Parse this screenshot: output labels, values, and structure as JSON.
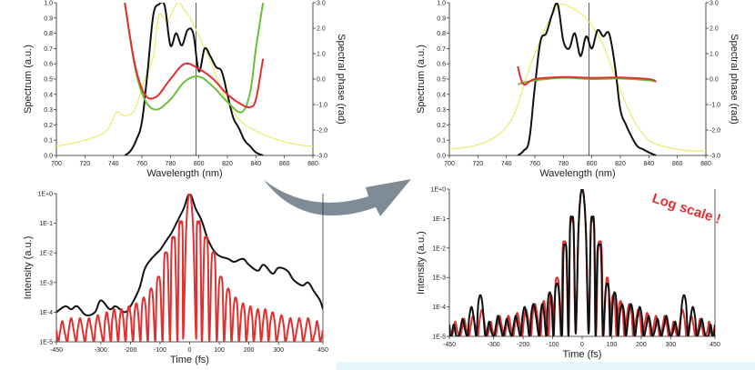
{
  "annotation": {
    "text": "Log scale !",
    "color": "#e32f2f"
  },
  "colors": {
    "black": "#111111",
    "red": "#e03030",
    "green": "#6bbf3a",
    "yellow": "#eeea6a",
    "arrow": "#7f8c96",
    "band": "#e7f6fb"
  },
  "chart_data": [
    {
      "id": "tl",
      "type": "line",
      "xlabel": "Wavelength (nm)",
      "ylabel": "Spectrum (a.u.)",
      "y2label": "Spectral phase (rad)",
      "xlim": [
        700,
        880
      ],
      "ylim": [
        0,
        1.0
      ],
      "y2lim": [
        -3.0,
        3.0
      ],
      "xticks": [
        "700",
        "720",
        "740",
        "760",
        "780",
        "800",
        "820",
        "840",
        "860",
        "880"
      ],
      "yticks": [
        "0.0",
        "0.1",
        "0.2",
        "0.3",
        "0.4",
        "0.5",
        "0.6",
        "0.7",
        "0.8",
        "0.9",
        "1.0"
      ],
      "y2ticks": [
        "-3.0",
        "-2.0",
        "-1.0",
        "0.0",
        "1.0",
        "2.0",
        "3.0"
      ],
      "vline": 798,
      "series": [
        {
          "color": "yellow",
          "axis": "y",
          "x": [
            700,
            720,
            735,
            742,
            748,
            755,
            762,
            768,
            772,
            778,
            785,
            790,
            795,
            800,
            808,
            815,
            822,
            830,
            840,
            850,
            860,
            870,
            880
          ],
          "y": [
            0.06,
            0.1,
            0.16,
            0.28,
            0.26,
            0.3,
            0.5,
            0.65,
            0.92,
            0.88,
            1.0,
            0.95,
            0.88,
            0.78,
            0.62,
            0.45,
            0.32,
            0.22,
            0.16,
            0.12,
            0.09,
            0.07,
            0.06
          ]
        },
        {
          "color": "black",
          "axis": "y",
          "x": [
            748,
            752,
            756,
            760,
            764,
            768,
            772,
            776,
            780,
            784,
            788,
            792,
            796,
            800,
            804,
            808,
            812,
            816,
            820,
            824,
            828,
            832,
            836,
            840,
            845
          ],
          "y": [
            0.0,
            0.03,
            0.1,
            0.22,
            0.55,
            0.92,
            0.99,
            0.98,
            0.72,
            0.8,
            0.72,
            0.82,
            0.8,
            0.55,
            0.7,
            0.65,
            0.58,
            0.55,
            0.4,
            0.25,
            0.18,
            0.1,
            0.06,
            0.02,
            0.0
          ]
        },
        {
          "color": "green",
          "axis": "y2",
          "x": [
            748,
            755,
            762,
            770,
            780,
            790,
            800,
            810,
            820,
            830,
            836,
            840,
            845
          ],
          "y": [
            3.0,
            0.5,
            -0.8,
            -1.2,
            -0.8,
            -0.1,
            0.1,
            -0.3,
            -0.9,
            -1.3,
            -0.5,
            1.2,
            3.0
          ]
        },
        {
          "color": "red",
          "axis": "y2",
          "x": [
            748,
            755,
            762,
            770,
            780,
            790,
            800,
            810,
            820,
            830,
            836,
            840,
            845
          ],
          "y": [
            3.0,
            0.6,
            -0.6,
            -0.7,
            0.0,
            0.6,
            0.4,
            0.0,
            -0.6,
            -1.0,
            -1.1,
            -0.8,
            0.8
          ]
        }
      ]
    },
    {
      "id": "tr",
      "type": "line",
      "xlabel": "Wavelength (nm)",
      "ylabel": "Spectrum (a.u.)",
      "y2label": "Spectral phase (rad)",
      "xlim": [
        700,
        880
      ],
      "ylim": [
        0,
        1.0
      ],
      "y2lim": [
        -3.0,
        3.0
      ],
      "xticks": [
        "700",
        "720",
        "740",
        "760",
        "780",
        "800",
        "820",
        "840",
        "860",
        "880"
      ],
      "yticks": [
        "0.0",
        "0.1",
        "0.2",
        "0.3",
        "0.4",
        "0.5",
        "0.6",
        "0.7",
        "0.8",
        "0.9",
        "1.0"
      ],
      "y2ticks": [
        "-3.0",
        "-2.0",
        "-1.0",
        "0.0",
        "1.0",
        "2.0",
        "3.0"
      ],
      "vline": 798,
      "series": [
        {
          "color": "yellow",
          "axis": "y",
          "x": [
            700,
            720,
            735,
            745,
            752,
            758,
            765,
            772,
            778,
            785,
            792,
            800,
            808,
            815,
            822,
            830,
            840,
            850,
            860,
            870,
            880
          ],
          "y": [
            0.04,
            0.07,
            0.14,
            0.26,
            0.45,
            0.62,
            0.78,
            0.92,
            0.99,
            0.97,
            0.93,
            0.85,
            0.72,
            0.55,
            0.38,
            0.22,
            0.1,
            0.06,
            0.04,
            0.03,
            0.03
          ]
        },
        {
          "color": "black",
          "axis": "y",
          "x": [
            748,
            752,
            756,
            760,
            764,
            768,
            772,
            776,
            780,
            784,
            788,
            792,
            796,
            800,
            804,
            808,
            812,
            816,
            820,
            824,
            828,
            832,
            836,
            840,
            845
          ],
          "y": [
            0.0,
            0.03,
            0.1,
            0.45,
            0.75,
            0.8,
            0.92,
            0.99,
            0.75,
            0.7,
            0.8,
            0.65,
            0.78,
            0.7,
            0.82,
            0.78,
            0.8,
            0.6,
            0.3,
            0.2,
            0.12,
            0.06,
            0.04,
            0.02,
            0.0
          ]
        },
        {
          "color": "green",
          "axis": "y2",
          "x": [
            748,
            760,
            780,
            800,
            820,
            840,
            845
          ],
          "y": [
            -0.2,
            -0.05,
            0.05,
            0.0,
            0.02,
            -0.05,
            -0.1
          ]
        },
        {
          "color": "red",
          "axis": "y2",
          "x": [
            748,
            752,
            760,
            780,
            800,
            820,
            840,
            845
          ],
          "y": [
            0.5,
            -0.2,
            0.0,
            0.08,
            0.05,
            0.06,
            0.0,
            -0.1
          ]
        }
      ]
    },
    {
      "id": "bl",
      "type": "line",
      "xlabel": "Time (fs)",
      "ylabel": "Intensity (a.u.)",
      "yscale": "log",
      "xlim": [
        -450,
        450
      ],
      "ylim": [
        -5,
        0
      ],
      "xticks": [
        "-450",
        "-300",
        "-200",
        "-100",
        "0",
        "100",
        "200",
        "300",
        "450"
      ],
      "xtick_values": [
        -450,
        -300,
        -200,
        -100,
        0,
        100,
        200,
        300,
        450
      ],
      "yticks": [
        "1E-5",
        "1E-4",
        "1E-3",
        "1E-2",
        "1E-1",
        "1E+0"
      ],
      "vline": 450,
      "series": [
        {
          "color": "black",
          "x": [
            -450,
            -420,
            -400,
            -380,
            -350,
            -320,
            -300,
            -270,
            -250,
            -220,
            -200,
            -170,
            -150,
            -120,
            -100,
            -80,
            -60,
            -40,
            -20,
            0,
            20,
            40,
            60,
            80,
            100,
            130,
            150,
            180,
            200,
            230,
            250,
            280,
            300,
            330,
            350,
            380,
            400,
            420,
            440,
            450
          ],
          "y": [
            -4.0,
            -3.8,
            -3.9,
            -3.8,
            -4.1,
            -4.0,
            -3.6,
            -3.9,
            -3.8,
            -4.0,
            -3.8,
            -3.2,
            -2.5,
            -2.1,
            -1.9,
            -1.6,
            -1.3,
            -0.9,
            -0.5,
            0.0,
            -0.5,
            -0.9,
            -1.5,
            -1.9,
            -2.1,
            -2.2,
            -2.3,
            -2.2,
            -2.4,
            -2.6,
            -2.4,
            -2.7,
            -2.5,
            -2.6,
            -2.9,
            -3.1,
            -3.0,
            -3.3,
            -3.6,
            -3.9
          ]
        },
        {
          "color": "red",
          "kind": "sidelobes",
          "peak_halfwidth": 22,
          "lobes": [
            [
              30,
              -1.0
            ],
            [
              55,
              -1.5
            ],
            [
              80,
              -2.0
            ],
            [
              105,
              -2.8
            ],
            [
              130,
              -3.2
            ],
            [
              155,
              -3.5
            ],
            [
              180,
              -3.7
            ],
            [
              205,
              -3.8
            ],
            [
              230,
              -3.9
            ],
            [
              255,
              -3.9
            ],
            [
              280,
              -4.0
            ],
            [
              310,
              -4.1
            ],
            [
              340,
              -4.2
            ],
            [
              370,
              -4.2
            ],
            [
              400,
              -4.2
            ],
            [
              430,
              -4.3
            ]
          ],
          "floor": -5
        }
      ]
    },
    {
      "id": "br",
      "type": "line",
      "xlabel": "Time (fs)",
      "ylabel": "Intensity (a.u.)",
      "yscale": "log",
      "xlim": [
        -450,
        450
      ],
      "ylim": [
        -5,
        0
      ],
      "xticks": [
        "-450",
        "-300",
        "-200",
        "-100",
        "0",
        "100",
        "200",
        "300",
        "450"
      ],
      "xtick_values": [
        -450,
        -300,
        -200,
        -100,
        0,
        100,
        200,
        300,
        450
      ],
      "yticks": [
        "1E-5",
        "1E-4",
        "1E-3",
        "1E-2",
        "1E-1",
        "1E+0"
      ],
      "vline": 450,
      "series": [
        {
          "color": "red",
          "kind": "sidelobes",
          "peak_halfwidth": 22,
          "lobes": [
            [
              35,
              -1.1
            ],
            [
              60,
              -1.8
            ],
            [
              85,
              -3.0
            ],
            [
              105,
              -3.6
            ],
            [
              130,
              -3.8
            ],
            [
              160,
              -3.9
            ],
            [
              190,
              -4.1
            ],
            [
              220,
              -4.2
            ],
            [
              250,
              -4.3
            ],
            [
              280,
              -4.3
            ],
            [
              310,
              -4.5
            ],
            [
              340,
              -4.1
            ],
            [
              370,
              -4.3
            ],
            [
              400,
              -4.4
            ],
            [
              430,
              -4.5
            ]
          ],
          "floor": -5
        },
        {
          "color": "black",
          "kind": "sidelobes",
          "peak_halfwidth": 22,
          "lobes": [
            [
              35,
              -1.0
            ],
            [
              58,
              -1.9
            ],
            [
              85,
              -3.2
            ],
            [
              110,
              -3.5
            ],
            [
              135,
              -3.9
            ],
            [
              165,
              -3.9
            ],
            [
              195,
              -4.0
            ],
            [
              225,
              -4.3
            ],
            [
              255,
              -4.4
            ],
            [
              285,
              -4.3
            ],
            [
              315,
              -4.5
            ],
            [
              345,
              -3.6
            ],
            [
              375,
              -4.0
            ],
            [
              405,
              -4.4
            ],
            [
              435,
              -4.6
            ]
          ],
          "floor": -5
        }
      ]
    }
  ]
}
